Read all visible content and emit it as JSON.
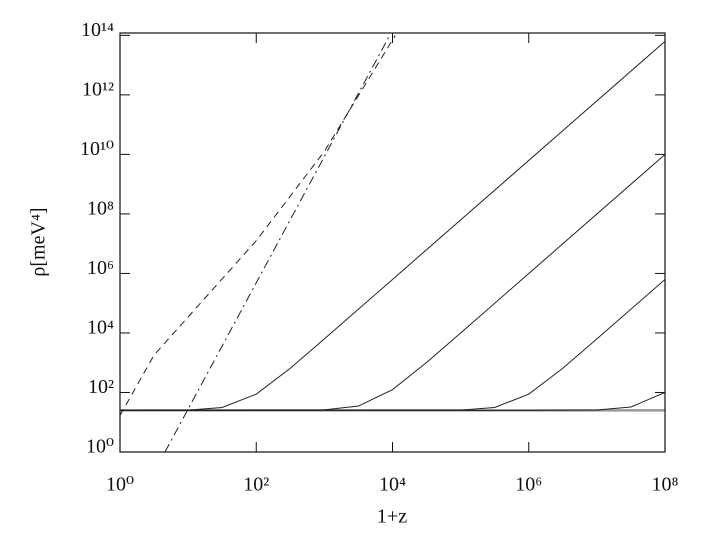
{
  "chart_data": {
    "type": "line",
    "xlabel": "1+z",
    "ylabel": "ρ[meV⁴]",
    "xscale": "log",
    "yscale": "log",
    "xlim": [
      1,
      100000000
    ],
    "ylim": [
      1,
      120000000000000
    ],
    "xticks": [
      {
        "value": 1,
        "label": "10⁰"
      },
      {
        "value": 100,
        "label": "10²"
      },
      {
        "value": 10000,
        "label": "10⁴"
      },
      {
        "value": 1000000,
        "label": "10⁶"
      },
      {
        "value": 100000000,
        "label": "10⁸"
      }
    ],
    "yticks": [
      {
        "value": 1,
        "label": "10⁰"
      },
      {
        "value": 100,
        "label": "10²"
      },
      {
        "value": 10000,
        "label": "10⁴"
      },
      {
        "value": 1000000,
        "label": "10⁶"
      },
      {
        "value": 100000000,
        "label": "10⁸"
      },
      {
        "value": 10000000000,
        "label": "10¹⁰"
      },
      {
        "value": 1000000000000,
        "label": "10¹²"
      },
      {
        "value": 100000000000000,
        "label": "10¹⁴"
      }
    ],
    "series": [
      {
        "color": "#999999",
        "linestyle": "solid",
        "width": 2.5,
        "x": [
          1,
          100000000
        ],
        "values": [
          25,
          25
        ]
      },
      {
        "color": "#222222",
        "linestyle": "solid",
        "width": 1,
        "x": [
          1,
          10,
          31.6,
          100,
          316,
          1000,
          10000,
          100000000
        ],
        "values": [
          25,
          25.6,
          31.3,
          87.8,
          653,
          6300,
          628000,
          62800000000000
        ]
      },
      {
        "color": "#222222",
        "linestyle": "solid",
        "width": 1,
        "x": [
          1,
          1000,
          3162,
          10000,
          31623,
          100000,
          1000000,
          100000000
        ],
        "values": [
          25,
          26,
          35,
          124.6,
          1020,
          9980,
          995000,
          9950000000
        ]
      },
      {
        "color": "#222222",
        "linestyle": "solid",
        "width": 1,
        "x": [
          1,
          100000,
          316228,
          1000000,
          3162278,
          10000000,
          100000000
        ],
        "values": [
          25,
          25.6,
          31.3,
          87.8,
          653,
          6300,
          628000
        ]
      },
      {
        "color": "#222222",
        "linestyle": "solid",
        "width": 1,
        "x": [
          1,
          1000000,
          10000000,
          31622777,
          100000000
        ],
        "values": [
          25,
          25,
          25.75,
          32.6,
          100.5
        ]
      },
      {
        "color": "#222222",
        "linestyle": "dashed",
        "width": 1,
        "x": [
          1,
          3.16,
          100,
          1000,
          11000
        ],
        "values": [
          17,
          1800,
          12600000,
          12600000000,
          100000000000000
        ]
      },
      {
        "color": "#222222",
        "linestyle": "dashdot",
        "width": 1,
        "x": [
          4.57,
          9100
        ],
        "values": [
          1,
          100000000000000
        ]
      }
    ]
  }
}
